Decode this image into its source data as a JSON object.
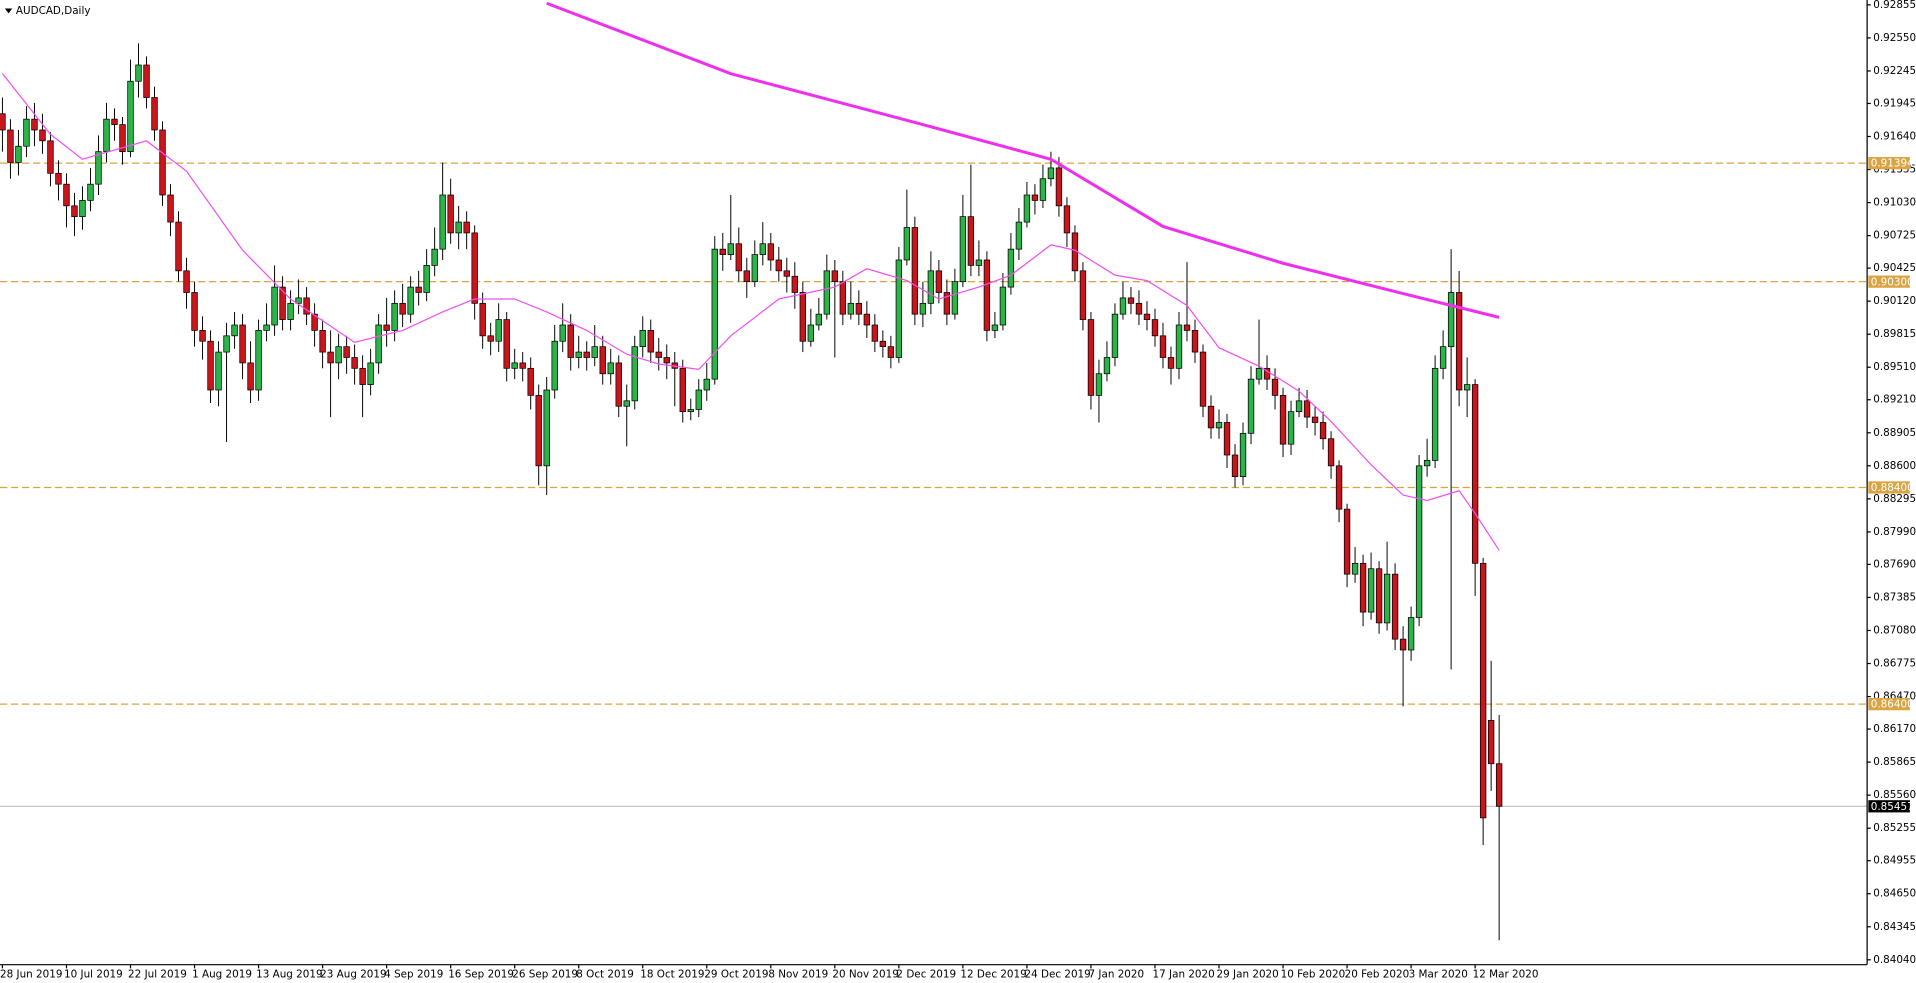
{
  "chart_data": {
    "type": "candlestick",
    "title": "AUDCAD,Daily",
    "categories": [
      "28 Jun 2019",
      null,
      null,
      null,
      null,
      null,
      null,
      null,
      "10 Jul 2019",
      null,
      null,
      null,
      null,
      null,
      null,
      null,
      "22 Jul 2019",
      null,
      null,
      null,
      null,
      null,
      null,
      null,
      "1 Aug 2019",
      null,
      null,
      null,
      null,
      null,
      null,
      null,
      "13 Aug 2019",
      null,
      null,
      null,
      null,
      null,
      null,
      null,
      "23 Aug 2019",
      null,
      null,
      null,
      null,
      null,
      null,
      null,
      "4 Sep 2019",
      null,
      null,
      null,
      null,
      null,
      null,
      null,
      "16 Sep 2019",
      null,
      null,
      null,
      null,
      null,
      null,
      null,
      "26 Sep 2019",
      null,
      null,
      null,
      null,
      null,
      null,
      null,
      "8 Oct 2019",
      null,
      null,
      null,
      null,
      null,
      null,
      null,
      "18 Oct 2019",
      null,
      null,
      null,
      null,
      null,
      null,
      null,
      "29 Oct 2019",
      null,
      null,
      null,
      null,
      null,
      null,
      null,
      "8 Nov 2019",
      null,
      null,
      null,
      null,
      null,
      null,
      null,
      "20 Nov 2019",
      null,
      null,
      null,
      null,
      null,
      null,
      null,
      "2 Dec 2019",
      null,
      null,
      null,
      null,
      null,
      null,
      null,
      "12 Dec 2019",
      null,
      null,
      null,
      null,
      null,
      null,
      null,
      "24 Dec 2019",
      null,
      null,
      null,
      null,
      null,
      null,
      null,
      "7 Jan 2020",
      null,
      null,
      null,
      null,
      null,
      null,
      null,
      "17 Jan 2020",
      null,
      null,
      null,
      null,
      null,
      null,
      null,
      "29 Jan 2020",
      null,
      null,
      null,
      null,
      null,
      null,
      null,
      "10 Feb 2020",
      null,
      null,
      null,
      null,
      null,
      null,
      null,
      "20 Feb 2020",
      null,
      null,
      null,
      null,
      null,
      null,
      null,
      "3 Mar 2020",
      null,
      null,
      null,
      null,
      null,
      null,
      null,
      "12 Mar 2020",
      null,
      null,
      null
    ],
    "open": [
      0.9185,
      0.917,
      0.914,
      0.9155,
      0.918,
      0.917,
      0.916,
      0.913,
      0.912,
      0.91,
      0.909,
      0.9105,
      0.912,
      0.915,
      0.918,
      0.9175,
      0.915,
      0.9215,
      0.923,
      0.92,
      0.917,
      0.911,
      0.9085,
      0.904,
      0.902,
      0.8985,
      0.8975,
      0.893,
      0.8965,
      0.898,
      0.899,
      0.8955,
      0.893,
      0.8985,
      0.899,
      0.9025,
      0.8995,
      0.901,
      0.9015,
      0.9,
      0.8985,
      0.8965,
      0.8955,
      0.897,
      0.896,
      0.895,
      0.8935,
      0.8955,
      0.899,
      0.8985,
      0.901,
      0.9,
      0.9025,
      0.902,
      0.9045,
      0.906,
      0.911,
      0.9075,
      0.9085,
      0.9075,
      0.901,
      0.898,
      0.8975,
      0.8995,
      0.895,
      0.8955,
      0.895,
      0.8925,
      0.886,
      0.893,
      0.8975,
      0.899,
      0.896,
      0.8965,
      0.896,
      0.897,
      0.8945,
      0.8955,
      0.8915,
      0.892,
      0.897,
      0.8985,
      0.8965,
      0.896,
      0.8955,
      0.895,
      0.891,
      0.8912,
      0.893,
      0.894,
      0.906,
      0.9055,
      0.9065,
      0.904,
      0.903,
      0.9055,
      0.9065,
      0.905,
      0.904,
      0.9035,
      0.902,
      0.8975,
      0.899,
      0.9,
      0.904,
      0.903,
      0.9,
      0.901,
      0.9,
      0.899,
      0.8975,
      0.897,
      0.896,
      0.905,
      0.908,
      0.9,
      0.901,
      0.904,
      0.902,
      0.9,
      0.903,
      0.909,
      0.9045,
      0.905,
      0.8985,
      0.899,
      0.9025,
      0.906,
      0.9085,
      0.911,
      0.9105,
      0.9125,
      0.9135,
      0.91,
      0.9075,
      0.904,
      0.8995,
      0.8925,
      0.8945,
      0.896,
      0.9,
      0.9015,
      0.901,
      0.9,
      0.8995,
      0.898,
      0.896,
      0.895,
      0.899,
      0.8985,
      0.8965,
      0.8915,
      0.8895,
      0.89,
      0.887,
      0.885,
      0.889,
      0.894,
      0.895,
      0.894,
      0.8925,
      0.888,
      0.891,
      0.892,
      0.8905,
      0.89,
      0.8885,
      0.886,
      0.882,
      0.876,
      0.877,
      0.8725,
      0.8765,
      0.8715,
      0.876,
      0.87,
      0.869,
      0.872,
      0.886,
      0.8865,
      0.895,
      0.897,
      0.902,
      0.893,
      0.8935,
      0.877,
      0.8625,
      0.8585
    ],
    "high": [
      0.92,
      0.918,
      0.917,
      0.9192,
      0.9195,
      0.9185,
      0.9168,
      0.9142,
      0.913,
      0.9112,
      0.9118,
      0.9135,
      0.9165,
      0.9195,
      0.919,
      0.9182,
      0.9235,
      0.925,
      0.9238,
      0.921,
      0.9178,
      0.912,
      0.9095,
      0.9052,
      0.903,
      0.8998,
      0.8985,
      0.8975,
      0.8992,
      0.9002,
      0.9,
      0.8975,
      0.8995,
      0.901,
      0.9045,
      0.9035,
      0.9022,
      0.9032,
      0.9025,
      0.901,
      0.8995,
      0.8985,
      0.8982,
      0.898,
      0.8972,
      0.8962,
      0.8968,
      0.9,
      0.9015,
      0.9022,
      0.9028,
      0.9035,
      0.904,
      0.906,
      0.908,
      0.914,
      0.9125,
      0.91,
      0.9095,
      0.9082,
      0.902,
      0.8992,
      0.901,
      0.9002,
      0.8968,
      0.8965,
      0.896,
      0.8935,
      0.8942,
      0.899,
      0.901,
      0.9,
      0.898,
      0.8975,
      0.899,
      0.898,
      0.8968,
      0.8962,
      0.8935,
      0.898,
      0.8998,
      0.8995,
      0.8978,
      0.8972,
      0.8965,
      0.8958,
      0.8922,
      0.894,
      0.8955,
      0.9072,
      0.9075,
      0.911,
      0.908,
      0.9052,
      0.9068,
      0.9085,
      0.9075,
      0.9062,
      0.9052,
      0.9048,
      0.903,
      0.9005,
      0.9015,
      0.9055,
      0.905,
      0.904,
      0.903,
      0.9022,
      0.9012,
      0.9,
      0.8985,
      0.898,
      0.9062,
      0.9115,
      0.909,
      0.903,
      0.9058,
      0.905,
      0.9032,
      0.9042,
      0.911,
      0.9138,
      0.9068,
      0.9058,
      0.9002,
      0.9038,
      0.9075,
      0.9098,
      0.9122,
      0.912,
      0.9138,
      0.915,
      0.9145,
      0.9108,
      0.9082,
      0.9048,
      0.9002,
      0.8958,
      0.8975,
      0.901,
      0.903,
      0.9025,
      0.9022,
      0.9012,
      0.9005,
      0.8992,
      0.897,
      0.9002,
      0.9048,
      0.8995,
      0.8972,
      0.8925,
      0.8912,
      0.8908,
      0.888,
      0.89,
      0.8952,
      0.8995,
      0.8962,
      0.895,
      0.8932,
      0.892,
      0.8932,
      0.893,
      0.8915,
      0.891,
      0.8892,
      0.8865,
      0.8825,
      0.8785,
      0.8778,
      0.878,
      0.8772,
      0.879,
      0.877,
      0.8712,
      0.873,
      0.887,
      0.8885,
      0.8962,
      0.8985,
      0.906,
      0.904,
      0.896,
      0.894,
      0.8775,
      0.868,
      0.863
    ],
    "low": [
      0.915,
      0.9125,
      0.9128,
      0.9145,
      0.9155,
      0.9148,
      0.9118,
      0.9105,
      0.908,
      0.9072,
      0.9078,
      0.9095,
      0.911,
      0.914,
      0.916,
      0.9138,
      0.9145,
      0.92,
      0.919,
      0.916,
      0.91,
      0.9072,
      0.903,
      0.9005,
      0.897,
      0.8958,
      0.8918,
      0.8915,
      0.8882,
      0.8968,
      0.894,
      0.8918,
      0.892,
      0.8975,
      0.898,
      0.8985,
      0.8985,
      0.9,
      0.899,
      0.897,
      0.895,
      0.8905,
      0.894,
      0.8945,
      0.8935,
      0.8905,
      0.8925,
      0.8945,
      0.897,
      0.8975,
      0.8988,
      0.8992,
      0.9008,
      0.9012,
      0.9035,
      0.905,
      0.9065,
      0.906,
      0.906,
      0.8995,
      0.8968,
      0.8962,
      0.8965,
      0.8938,
      0.894,
      0.8938,
      0.8912,
      0.8842,
      0.8833,
      0.8922,
      0.8965,
      0.8948,
      0.895,
      0.8948,
      0.8952,
      0.8935,
      0.8935,
      0.8905,
      0.8878,
      0.8912,
      0.896,
      0.8955,
      0.8948,
      0.894,
      0.8915,
      0.89,
      0.8902,
      0.8905,
      0.892,
      0.8935,
      0.904,
      0.905,
      0.903,
      0.9015,
      0.9025,
      0.9045,
      0.904,
      0.903,
      0.902,
      0.9005,
      0.8965,
      0.897,
      0.8985,
      0.8995,
      0.896,
      0.899,
      0.8995,
      0.899,
      0.8978,
      0.8965,
      0.896,
      0.895,
      0.8955,
      0.9045,
      0.899,
      0.8988,
      0.9,
      0.901,
      0.899,
      0.8995,
      0.9025,
      0.9035,
      0.9035,
      0.8975,
      0.8978,
      0.8985,
      0.9018,
      0.905,
      0.908,
      0.9092,
      0.9098,
      0.9118,
      0.909,
      0.9062,
      0.903,
      0.8985,
      0.8912,
      0.89,
      0.8938,
      0.8952,
      0.8995,
      0.9,
      0.899,
      0.8985,
      0.897,
      0.895,
      0.8935,
      0.894,
      0.8975,
      0.8955,
      0.8905,
      0.8885,
      0.8885,
      0.8858,
      0.884,
      0.8842,
      0.888,
      0.8935,
      0.893,
      0.8912,
      0.8868,
      0.887,
      0.8905,
      0.8895,
      0.8888,
      0.8875,
      0.8848,
      0.8808,
      0.8748,
      0.8752,
      0.8712,
      0.8718,
      0.8705,
      0.8708,
      0.869,
      0.8638,
      0.868,
      0.8712,
      0.885,
      0.8858,
      0.894,
      0.8672,
      0.8915,
      0.8905,
      0.874,
      0.851,
      0.856,
      0.8422
    ],
    "close": [
      0.917,
      0.914,
      0.9155,
      0.918,
      0.917,
      0.916,
      0.913,
      0.912,
      0.91,
      0.909,
      0.9105,
      0.912,
      0.915,
      0.918,
      0.9175,
      0.915,
      0.9215,
      0.923,
      0.92,
      0.917,
      0.911,
      0.9085,
      0.904,
      0.902,
      0.8985,
      0.8975,
      0.893,
      0.8965,
      0.898,
      0.899,
      0.8955,
      0.893,
      0.8985,
      0.899,
      0.9025,
      0.8995,
      0.901,
      0.9015,
      0.9,
      0.8985,
      0.8965,
      0.8955,
      0.897,
      0.896,
      0.895,
      0.8935,
      0.8955,
      0.899,
      0.8985,
      0.901,
      0.9,
      0.9025,
      0.902,
      0.9045,
      0.906,
      0.911,
      0.9075,
      0.9085,
      0.9075,
      0.901,
      0.898,
      0.8975,
      0.8995,
      0.895,
      0.8955,
      0.895,
      0.8925,
      0.886,
      0.893,
      0.8975,
      0.899,
      0.896,
      0.8965,
      0.896,
      0.897,
      0.8945,
      0.8955,
      0.8915,
      0.892,
      0.897,
      0.8985,
      0.8965,
      0.896,
      0.8955,
      0.895,
      0.891,
      0.8912,
      0.893,
      0.894,
      0.906,
      0.9055,
      0.9065,
      0.904,
      0.903,
      0.9055,
      0.9065,
      0.905,
      0.904,
      0.9035,
      0.902,
      0.8975,
      0.899,
      0.9,
      0.904,
      0.903,
      0.9,
      0.901,
      0.9,
      0.899,
      0.8975,
      0.897,
      0.896,
      0.905,
      0.908,
      0.9,
      0.901,
      0.904,
      0.902,
      0.9,
      0.903,
      0.909,
      0.9045,
      0.905,
      0.8985,
      0.899,
      0.9025,
      0.906,
      0.9085,
      0.911,
      0.9105,
      0.9125,
      0.9135,
      0.91,
      0.9075,
      0.904,
      0.8995,
      0.8925,
      0.8945,
      0.896,
      0.9,
      0.9015,
      0.901,
      0.9,
      0.8995,
      0.898,
      0.896,
      0.895,
      0.899,
      0.8985,
      0.8965,
      0.8915,
      0.8895,
      0.89,
      0.887,
      0.885,
      0.889,
      0.894,
      0.895,
      0.894,
      0.8925,
      0.888,
      0.891,
      0.892,
      0.8905,
      0.89,
      0.8885,
      0.886,
      0.882,
      0.876,
      0.877,
      0.8725,
      0.8765,
      0.8715,
      0.876,
      0.87,
      0.869,
      0.872,
      0.886,
      0.8865,
      0.895,
      0.897,
      0.902,
      0.893,
      0.8935,
      0.877,
      0.8535,
      0.8585,
      0.85457
    ],
    "up_color": "#2db34a",
    "down_color": "#c8161d",
    "overlays": [
      {
        "color": "#f050f0",
        "width": 1,
        "x": [
          0,
          6,
          10,
          18,
          23,
          30,
          36,
          44,
          50,
          55,
          59,
          64,
          68,
          73,
          78,
          82,
          87,
          91,
          97,
          104,
          108,
          113,
          117,
          122,
          126,
          131,
          134,
          139,
          143,
          148,
          152,
          157,
          162,
          166,
          171,
          175,
          178,
          182,
          184,
          187
        ],
        "values": [
          0.9222,
          0.9166,
          0.9143,
          0.916,
          0.9132,
          0.9059,
          0.9014,
          0.8974,
          0.8985,
          0.9002,
          0.9014,
          0.9014,
          0.9002,
          0.8985,
          0.8963,
          0.8954,
          0.8949,
          0.898,
          0.9014,
          0.9025,
          0.9042,
          0.9031,
          0.9014,
          0.9025,
          0.9036,
          0.9064,
          0.9059,
          0.9036,
          0.9031,
          0.9008,
          0.8969,
          0.8952,
          0.8929,
          0.8901,
          0.8861,
          0.8833,
          0.8828,
          0.8837,
          0.8816,
          0.8782
        ]
      },
      {
        "color": "#ee30ee",
        "width": 2.5,
        "x": [
          68,
          91,
          114,
          131,
          145,
          160,
          175,
          187
        ],
        "values": [
          0.9287,
          0.9222,
          0.9177,
          0.9143,
          0.9081,
          0.9047,
          0.9019,
          0.8997
        ]
      }
    ],
    "levels": [
      {
        "value": 0.91394,
        "label": "0.91394"
      },
      {
        "value": 0.903,
        "label": "0.90300"
      },
      {
        "value": 0.884,
        "label": "0.88400"
      },
      {
        "value": 0.864,
        "label": "0.86400"
      }
    ],
    "level_color": "#d9a441",
    "last_price": 0.85457,
    "ylim": [
      0.83995,
      0.929
    ],
    "yticks": [
      0.92855,
      {
        "value": 0.9255,
        "label": "0.92550"
      },
      0.92245,
      0.91945,
      {
        "value": 0.9164,
        "label": "0.91640"
      },
      0.91335,
      {
        "value": 0.9103,
        "label": "0.91030"
      },
      0.90725,
      0.90425,
      {
        "value": 0.9012,
        "label": "0.90120"
      },
      0.89815,
      {
        "value": 0.8951,
        "label": "0.89510"
      },
      {
        "value": 0.8921,
        "label": "0.89210"
      },
      0.88905,
      {
        "value": 0.886,
        "label": "0.88600"
      },
      0.88295,
      {
        "value": 0.8799,
        "label": "0.87990"
      },
      {
        "value": 0.8769,
        "label": "0.87690"
      },
      0.87385,
      {
        "value": 0.8708,
        "label": "0.87080"
      },
      0.86775,
      {
        "value": 0.8647,
        "label": "0.86470"
      },
      {
        "value": 0.8617,
        "label": "0.86170"
      },
      0.85865,
      {
        "value": 0.8556,
        "label": "0.85560"
      },
      0.85255,
      0.84955,
      {
        "value": 0.8465,
        "label": "0.84650"
      },
      0.84345,
      {
        "value": 0.8404,
        "label": "0.84040"
      }
    ]
  }
}
